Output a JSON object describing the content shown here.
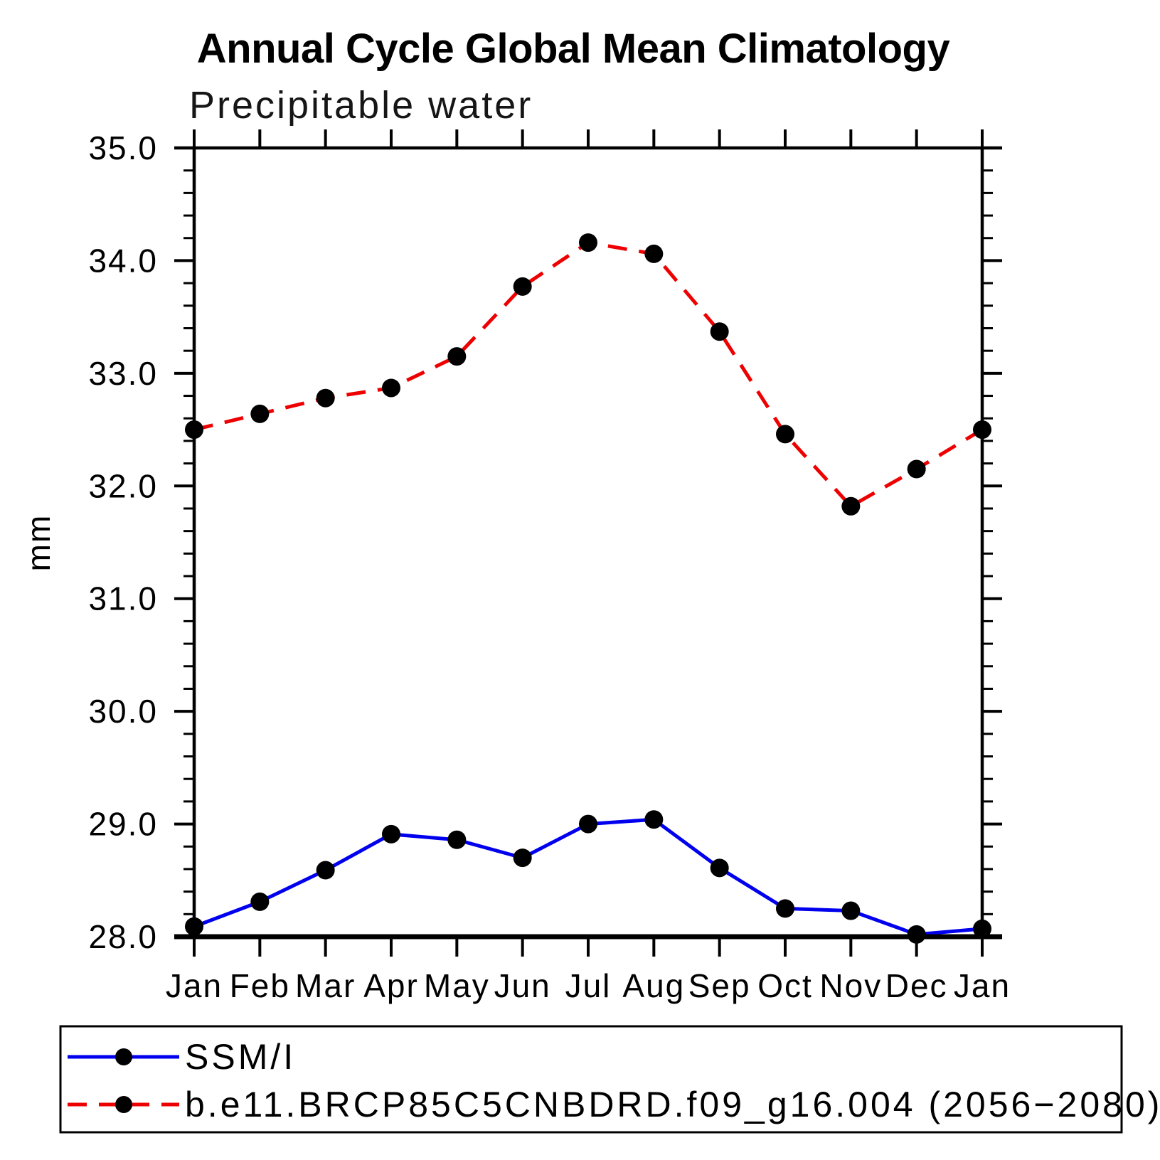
{
  "header": {
    "title": "Annual Cycle Global Mean Climatology",
    "subtitle": "Precipitable water"
  },
  "colors": {
    "axis": "#000000",
    "background": "#ffffff",
    "ssmi_line": "#0000ee",
    "model_line": "#ee0000",
    "marker": "#000000"
  },
  "chart_data": {
    "type": "line",
    "title": "Annual Cycle Global Mean Climatology",
    "subtitle": "Precipitable water",
    "ylabel": "mm",
    "xlabel": "",
    "categories": [
      "Jan",
      "Feb",
      "Mar",
      "Apr",
      "May",
      "Jun",
      "Jul",
      "Aug",
      "Sep",
      "Oct",
      "Nov",
      "Dec",
      "Jan"
    ],
    "ylim": [
      28.0,
      35.0
    ],
    "ytick_interval": 1.0,
    "ytick_minor_interval": 0.2,
    "ytick_labels": [
      "35.0",
      "34.0",
      "33.0",
      "32.0",
      "31.0",
      "30.0",
      "29.0",
      "28.0"
    ],
    "grid": false,
    "legend_position": "bottom-left-box",
    "series": [
      {
        "name": "SSM/I",
        "color": "#0000ee",
        "line_style": "solid",
        "marker": "circle",
        "marker_color": "#000000",
        "values": [
          28.09,
          28.31,
          28.59,
          28.91,
          28.86,
          28.7,
          29.0,
          29.04,
          28.61,
          28.25,
          28.23,
          28.02,
          28.07
        ]
      },
      {
        "name": "b.e11.BRCP85C5CNBDRD.f09_g16.004 (2056−2080)",
        "color": "#ee0000",
        "line_style": "dashed",
        "marker": "circle",
        "marker_color": "#000000",
        "values": [
          32.5,
          32.64,
          32.78,
          32.87,
          33.15,
          33.77,
          34.16,
          34.06,
          33.37,
          32.46,
          31.82,
          32.15,
          32.5
        ]
      }
    ]
  }
}
